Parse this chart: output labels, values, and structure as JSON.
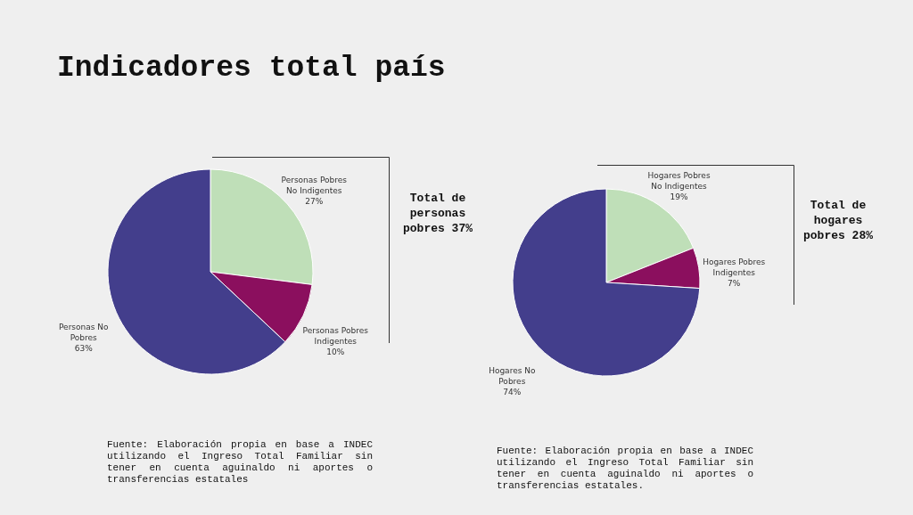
{
  "chart_data": [
    {
      "type": "pie",
      "title": "Indicadores total país",
      "categories": [
        "Personas Pobres No Indigentes",
        "Personas Pobres Indigentes",
        "Personas No Pobres"
      ],
      "values": [
        27,
        10,
        63
      ],
      "colors": [
        "#bfdfb8",
        "#8b0f5e",
        "#433e8c"
      ],
      "value_labels": [
        "27%",
        "10%",
        "63%"
      ],
      "annotations": [
        "Total de personas pobres 37%",
        "Fuente: Elaboración propia en base a INDEC utilizando el Ingreso Total Familiar sin tener en cuenta aguinaldo ni aportes o transferencias estatales"
      ]
    },
    {
      "type": "pie",
      "categories": [
        "Hogares Pobres No Indigentes",
        "Hogares Pobres Indigentes",
        "Hogares No Pobres"
      ],
      "values": [
        19,
        7,
        74
      ],
      "colors": [
        "#bfdfb8",
        "#8b0f5e",
        "#433e8c"
      ],
      "value_labels": [
        "19%",
        "7%",
        "74%"
      ],
      "annotations": [
        "Total de hogares pobres 28%",
        "Fuente: Elaboración propia en base a INDEC utilizando el Ingreso Total Familiar sin tener en cuenta aguinaldo ni aportes o transferencias estatales."
      ]
    }
  ]
}
